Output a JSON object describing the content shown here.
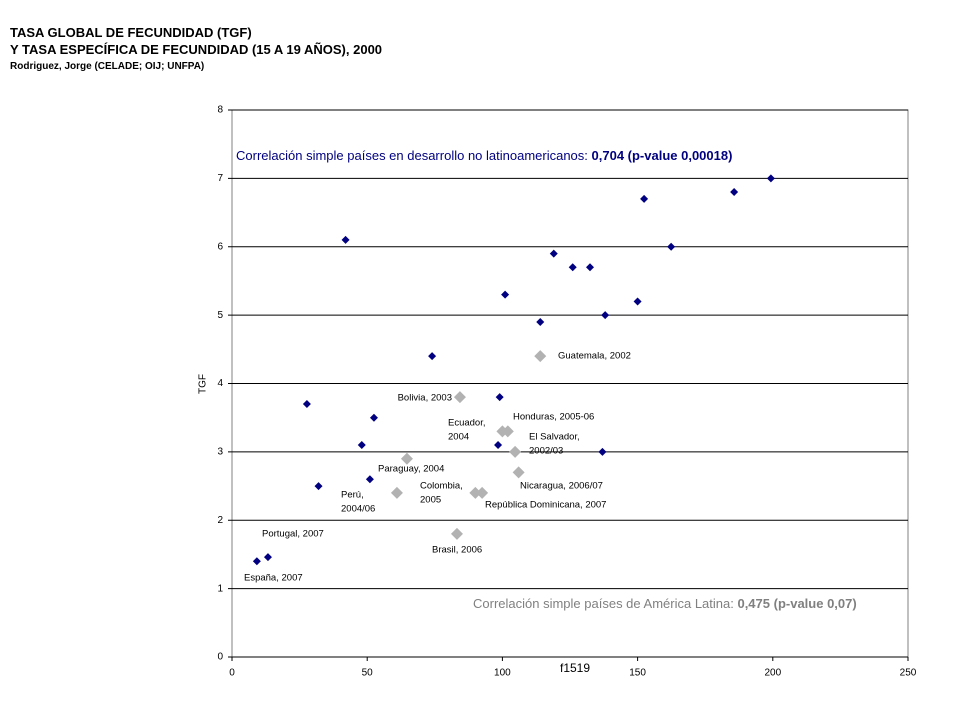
{
  "chart_data": {
    "type": "scatter",
    "title": "TASA GLOBAL DE FECUNDIDAD (TGF)",
    "subtitle": "Y TASA ESPECÍFICA DE FECUNDIDAD (15 A 19 AÑOS), 2000",
    "source": "Rodriguez, Jorge (CELADE; OIJ; UNFPA)",
    "x_label": "f1519",
    "y_label": "TGF",
    "xlim": [
      0,
      250
    ],
    "xticks": [
      0,
      50,
      100,
      150,
      200,
      250
    ],
    "ylim": [
      0,
      8
    ],
    "yticks": [
      0,
      1,
      2,
      3,
      4,
      5,
      6,
      7,
      8
    ],
    "grid": true,
    "annotations": [
      [
        "Correlación simple países en desarrollo no latinoamericanos: ",
        "0,704 (p-value 0,00018)"
      ],
      [
        "Correlación simple países de América Latina: ",
        "0,475 (p-value 0,07)"
      ]
    ],
    "series": [
      {
        "color": "#000080",
        "x": [
          13.3,
          9.2,
          42,
          27.7,
          52.5,
          48,
          32,
          51,
          74,
          99,
          98.4,
          101,
          114,
          119,
          126,
          132.4,
          138,
          137,
          150,
          152.4,
          162.4,
          185.7,
          199.3
        ],
        "values": [
          1.46,
          1.4,
          6.1,
          3.7,
          3.5,
          3.1,
          2.5,
          2.6,
          4.4,
          3.8,
          3.1,
          5.3,
          4.9,
          5.9,
          5.7,
          5.7,
          5.0,
          3.0,
          5.2,
          6.7,
          6.0,
          6.8,
          7.0
        ],
        "labels": [
          [
            "Portugal,  2007"
          ],
          [
            "España, 2007"
          ],
          null,
          null,
          null,
          null,
          null,
          null,
          null,
          null,
          null,
          null,
          null,
          null,
          null,
          null,
          null,
          null,
          null,
          null,
          null,
          null,
          null
        ]
      },
      {
        "color": "#b2b2b2",
        "x": [
          114,
          84.3,
          100,
          102,
          104.7,
          106,
          64.7,
          61,
          90,
          92.5,
          83.2
        ],
        "values": [
          4.4,
          3.8,
          3.3,
          3.3,
          3.0,
          2.7,
          2.9,
          2.4,
          2.4,
          2.4,
          1.8
        ],
        "labels": [
          [
            "Guatemala, 2002"
          ],
          [
            "Bolivia, 2003"
          ],
          [
            "Ecuador,",
            "2004"
          ],
          [
            "Honduras, 2005-06"
          ],
          [
            "El Salvador,",
            "2002/03"
          ],
          [
            "Nicaragua, 2006/07"
          ],
          [
            "Paraguay, 2004"
          ],
          [
            "Perú,",
            "2004/06"
          ],
          [
            "Colombia,",
            "2005"
          ],
          [
            "República Dominicana, 2007"
          ],
          [
            "Brasil, 2006"
          ]
        ]
      }
    ]
  }
}
